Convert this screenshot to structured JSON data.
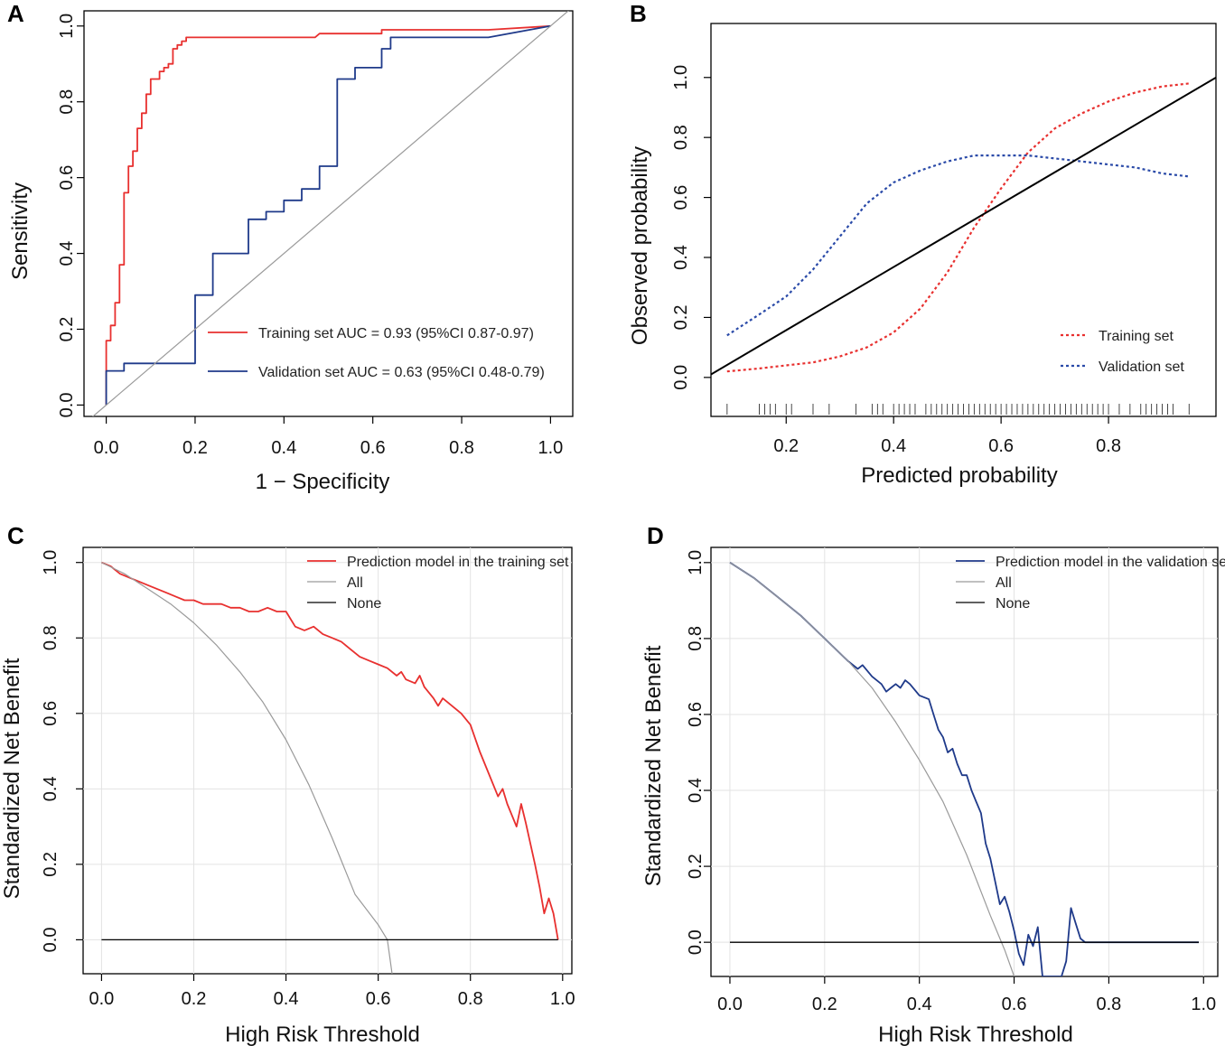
{
  "panels": [
    {
      "letter": "A",
      "chart_data": {
        "type": "line",
        "title": "",
        "xlabel": "1 − Specificity",
        "ylabel": "Sensitivity",
        "xlim": [
          -0.05,
          1.05
        ],
        "ylim": [
          -0.03,
          1.04
        ],
        "xticks": [
          "0.0",
          "0.2",
          "0.4",
          "0.6",
          "0.8",
          "1.0"
        ],
        "yticks": [
          "0.0",
          "0.2",
          "0.4",
          "0.6",
          "0.8",
          "1.0"
        ],
        "grid": false,
        "legend_position": "bottom-right",
        "series": [
          {
            "name": "Training set AUC = 0.93 (95%CI 0.87-0.97)",
            "color": "#e8302f",
            "style": "solid",
            "x": [
              0.0,
              0.0,
              0.01,
              0.01,
              0.02,
              0.02,
              0.03,
              0.03,
              0.04,
              0.04,
              0.05,
              0.05,
              0.06,
              0.06,
              0.07,
              0.07,
              0.08,
              0.08,
              0.09,
              0.09,
              0.1,
              0.1,
              0.12,
              0.12,
              0.13,
              0.13,
              0.14,
              0.14,
              0.15,
              0.15,
              0.16,
              0.16,
              0.17,
              0.17,
              0.18,
              0.18,
              0.19,
              0.19,
              0.2,
              0.2,
              0.21,
              0.21,
              0.22,
              0.22,
              0.47,
              0.48,
              0.48,
              0.62,
              0.62,
              0.75,
              0.86,
              1.0
            ],
            "y": [
              0.0,
              0.17,
              0.17,
              0.21,
              0.21,
              0.27,
              0.27,
              0.37,
              0.37,
              0.56,
              0.56,
              0.63,
              0.63,
              0.67,
              0.67,
              0.73,
              0.73,
              0.77,
              0.77,
              0.82,
              0.82,
              0.86,
              0.86,
              0.88,
              0.88,
              0.89,
              0.89,
              0.9,
              0.9,
              0.94,
              0.94,
              0.95,
              0.95,
              0.96,
              0.96,
              0.97,
              0.97,
              0.97,
              0.97,
              0.97,
              0.97,
              0.97,
              0.97,
              0.97,
              0.97,
              0.98,
              0.98,
              0.98,
              0.99,
              0.99,
              0.99,
              1.0
            ]
          },
          {
            "name": "Validation set AUC = 0.63 (95%CI 0.48-0.79)",
            "color": "#1f3a8a",
            "style": "solid",
            "x": [
              0.0,
              0.0,
              0.04,
              0.04,
              0.2,
              0.2,
              0.24,
              0.24,
              0.32,
              0.32,
              0.36,
              0.36,
              0.4,
              0.4,
              0.44,
              0.44,
              0.48,
              0.48,
              0.52,
              0.52,
              0.54,
              0.54,
              0.56,
              0.56,
              0.58,
              0.58,
              0.62,
              0.62,
              0.64,
              0.64,
              0.86,
              1.0
            ],
            "y": [
              0.0,
              0.09,
              0.09,
              0.11,
              0.11,
              0.29,
              0.29,
              0.4,
              0.4,
              0.49,
              0.49,
              0.51,
              0.51,
              0.54,
              0.54,
              0.57,
              0.57,
              0.63,
              0.63,
              0.86,
              0.86,
              0.86,
              0.86,
              0.89,
              0.89,
              0.89,
              0.89,
              0.94,
              0.94,
              0.97,
              0.97,
              1.0
            ]
          },
          {
            "name": "reference",
            "color": "#9a9a9a",
            "style": "solid",
            "x": [
              -0.05,
              1.05
            ],
            "y": [
              -0.05,
              1.05
            ]
          }
        ]
      }
    },
    {
      "letter": "B",
      "chart_data": {
        "type": "line",
        "title": "",
        "xlabel": "Predicted probability",
        "ylabel": "Observed probability",
        "xlim": [
          0.06,
          1.0
        ],
        "ylim": [
          -0.13,
          1.18
        ],
        "xticks": [
          "0.2",
          "0.4",
          "0.6",
          "0.8"
        ],
        "yticks": [
          "0.0",
          "0.2",
          "0.4",
          "0.6",
          "0.8",
          "1.0"
        ],
        "grid": false,
        "legend_position": "bottom-right",
        "series": [
          {
            "name": "Training set",
            "color": "#e8302f",
            "style": "dotted",
            "x": [
              0.09,
              0.15,
              0.2,
              0.25,
              0.3,
              0.35,
              0.4,
              0.45,
              0.5,
              0.55,
              0.6,
              0.65,
              0.7,
              0.75,
              0.8,
              0.85,
              0.9,
              0.95
            ],
            "y": [
              0.02,
              0.03,
              0.04,
              0.05,
              0.07,
              0.1,
              0.15,
              0.23,
              0.35,
              0.5,
              0.63,
              0.75,
              0.83,
              0.88,
              0.92,
              0.95,
              0.97,
              0.98
            ]
          },
          {
            "name": "Validation set",
            "color": "#2a4aa8",
            "style": "dotted",
            "x": [
              0.09,
              0.15,
              0.2,
              0.25,
              0.3,
              0.35,
              0.4,
              0.45,
              0.5,
              0.55,
              0.6,
              0.65,
              0.7,
              0.75,
              0.8,
              0.85,
              0.9,
              0.95
            ],
            "y": [
              0.14,
              0.21,
              0.27,
              0.36,
              0.47,
              0.58,
              0.65,
              0.69,
              0.72,
              0.74,
              0.74,
              0.74,
              0.73,
              0.72,
              0.71,
              0.7,
              0.68,
              0.67
            ],
            "legend_dash_color": "#2a4aa8"
          },
          {
            "name": "ideal",
            "color": "#000000",
            "style": "solid",
            "x": [
              0.06,
              1.0
            ],
            "y": [
              0.01,
              1.0
            ]
          }
        ],
        "rug": [
          0.09,
          0.15,
          0.16,
          0.17,
          0.18,
          0.2,
          0.21,
          0.25,
          0.28,
          0.33,
          0.36,
          0.37,
          0.38,
          0.4,
          0.41,
          0.42,
          0.43,
          0.44,
          0.46,
          0.47,
          0.48,
          0.49,
          0.5,
          0.51,
          0.52,
          0.53,
          0.54,
          0.55,
          0.56,
          0.57,
          0.58,
          0.59,
          0.6,
          0.61,
          0.62,
          0.63,
          0.64,
          0.65,
          0.66,
          0.67,
          0.68,
          0.69,
          0.7,
          0.71,
          0.72,
          0.73,
          0.74,
          0.75,
          0.76,
          0.77,
          0.78,
          0.79,
          0.8,
          0.82,
          0.84,
          0.86,
          0.87,
          0.88,
          0.89,
          0.9,
          0.91,
          0.92,
          0.95
        ]
      }
    },
    {
      "letter": "C",
      "chart_data": {
        "type": "line",
        "title": "",
        "xlabel": "High Risk Threshold",
        "ylabel": "Standardized Net Benefit",
        "xlim": [
          -0.04,
          1.02
        ],
        "ylim": [
          -0.09,
          1.04
        ],
        "xticks": [
          "0.0",
          "0.2",
          "0.4",
          "0.6",
          "0.8",
          "1.0"
        ],
        "yticks": [
          "0.0",
          "0.2",
          "0.4",
          "0.6",
          "0.8",
          "1.0"
        ],
        "grid": true,
        "legend_position": "top-right",
        "series": [
          {
            "name": "Prediction model in the training set",
            "color": "#e8302f",
            "style": "solid",
            "x": [
              0.0,
              0.02,
              0.04,
              0.06,
              0.08,
              0.1,
              0.12,
              0.14,
              0.16,
              0.18,
              0.2,
              0.22,
              0.24,
              0.26,
              0.28,
              0.3,
              0.32,
              0.34,
              0.36,
              0.38,
              0.4,
              0.41,
              0.42,
              0.44,
              0.46,
              0.48,
              0.5,
              0.52,
              0.54,
              0.56,
              0.58,
              0.6,
              0.62,
              0.64,
              0.65,
              0.66,
              0.68,
              0.69,
              0.7,
              0.72,
              0.73,
              0.74,
              0.76,
              0.78,
              0.8,
              0.82,
              0.84,
              0.86,
              0.87,
              0.88,
              0.9,
              0.91,
              0.92,
              0.94,
              0.95,
              0.96,
              0.97,
              0.98,
              0.99
            ],
            "y": [
              1.0,
              0.99,
              0.97,
              0.96,
              0.95,
              0.94,
              0.93,
              0.92,
              0.91,
              0.9,
              0.9,
              0.89,
              0.89,
              0.89,
              0.88,
              0.88,
              0.87,
              0.87,
              0.88,
              0.87,
              0.87,
              0.85,
              0.83,
              0.82,
              0.83,
              0.81,
              0.8,
              0.79,
              0.77,
              0.75,
              0.74,
              0.73,
              0.72,
              0.7,
              0.71,
              0.69,
              0.68,
              0.7,
              0.67,
              0.64,
              0.62,
              0.64,
              0.62,
              0.6,
              0.57,
              0.5,
              0.44,
              0.38,
              0.4,
              0.36,
              0.3,
              0.36,
              0.31,
              0.2,
              0.14,
              0.07,
              0.11,
              0.07,
              0.0
            ]
          },
          {
            "name": "All",
            "color": "#9a9a9a",
            "style": "solid",
            "x": [
              0.0,
              0.05,
              0.1,
              0.15,
              0.2,
              0.25,
              0.3,
              0.35,
              0.4,
              0.45,
              0.5,
              0.55,
              0.6,
              0.62,
              0.63
            ],
            "y": [
              1.0,
              0.97,
              0.93,
              0.89,
              0.84,
              0.78,
              0.71,
              0.63,
              0.53,
              0.41,
              0.27,
              0.12,
              0.04,
              0.0,
              -0.09
            ]
          },
          {
            "name": "None",
            "color": "#000000",
            "style": "solid",
            "x": [
              0.0,
              0.99
            ],
            "y": [
              0.0,
              0.0
            ]
          }
        ]
      }
    },
    {
      "letter": "D",
      "chart_data": {
        "type": "line",
        "title": "",
        "xlabel": "High Risk Threshold",
        "ylabel": "Standardized Net Benefit",
        "xlim": [
          -0.04,
          1.03
        ],
        "ylim": [
          -0.09,
          1.04
        ],
        "xticks": [
          "0.0",
          "0.2",
          "0.4",
          "0.6",
          "0.8",
          "1.0"
        ],
        "yticks": [
          "0.0",
          "0.2",
          "0.4",
          "0.6",
          "0.8",
          "1.0"
        ],
        "grid": true,
        "legend_position": "top-right",
        "series": [
          {
            "name": "Prediction model in the validation set",
            "color": "#1f3a8a",
            "style": "solid",
            "x": [
              0.0,
              0.05,
              0.1,
              0.15,
              0.2,
              0.25,
              0.27,
              0.28,
              0.3,
              0.32,
              0.33,
              0.34,
              0.35,
              0.36,
              0.37,
              0.38,
              0.4,
              0.42,
              0.43,
              0.44,
              0.45,
              0.46,
              0.47,
              0.48,
              0.49,
              0.5,
              0.51,
              0.52,
              0.53,
              0.54,
              0.55,
              0.56,
              0.57,
              0.58,
              0.59,
              0.6,
              0.61,
              0.62,
              0.63,
              0.64,
              0.65,
              0.66,
              0.67,
              0.68,
              0.69,
              0.7,
              0.71,
              0.72,
              0.73,
              0.74,
              0.75,
              0.76,
              0.8,
              0.9,
              0.99
            ],
            "y": [
              1.0,
              0.96,
              0.91,
              0.86,
              0.8,
              0.74,
              0.72,
              0.73,
              0.7,
              0.68,
              0.66,
              0.67,
              0.68,
              0.67,
              0.69,
              0.68,
              0.65,
              0.64,
              0.6,
              0.56,
              0.54,
              0.5,
              0.51,
              0.47,
              0.44,
              0.44,
              0.4,
              0.37,
              0.34,
              0.26,
              0.22,
              0.16,
              0.1,
              0.12,
              0.08,
              0.03,
              -0.03,
              -0.06,
              0.02,
              -0.01,
              0.04,
              -0.09,
              -0.09,
              -0.09,
              -0.09,
              -0.09,
              -0.05,
              0.09,
              0.05,
              0.01,
              0.0,
              0.0,
              0.0,
              0.0,
              0.0
            ]
          },
          {
            "name": "All",
            "color": "#9a9a9a",
            "style": "solid",
            "x": [
              0.0,
              0.05,
              0.1,
              0.15,
              0.2,
              0.25,
              0.3,
              0.35,
              0.4,
              0.45,
              0.5,
              0.55,
              0.58,
              0.6
            ],
            "y": [
              1.0,
              0.96,
              0.91,
              0.86,
              0.8,
              0.74,
              0.67,
              0.58,
              0.48,
              0.37,
              0.23,
              0.07,
              -0.02,
              -0.09
            ]
          },
          {
            "name": "None",
            "color": "#000000",
            "style": "solid",
            "x": [
              0.0,
              0.99
            ],
            "y": [
              0.0,
              0.0
            ]
          }
        ]
      }
    }
  ]
}
